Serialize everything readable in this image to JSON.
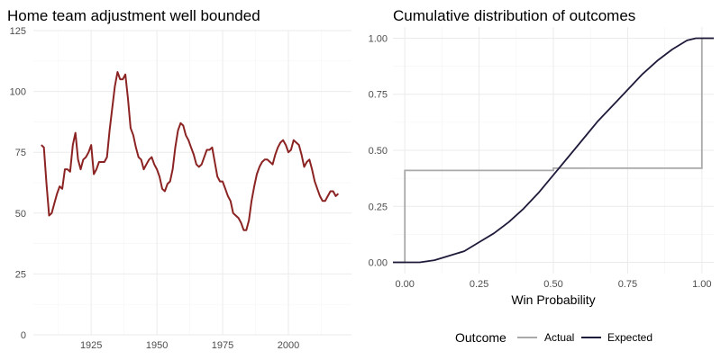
{
  "colors": {
    "home_line": "#8b2323",
    "actual": "#a9a9a9",
    "expected": "#1e1b3a",
    "grid_major": "#ebebeb",
    "grid_minor": "#f5f5f5",
    "tick_text": "#4d4d4d"
  },
  "chart_data": [
    {
      "type": "line",
      "title": "Home team adjustment well bounded",
      "xlabel": "",
      "ylabel": "",
      "xlim": [
        1903,
        2024
      ],
      "ylim": [
        0,
        125
      ],
      "x_ticks": [
        1925,
        1950,
        1975,
        2000
      ],
      "y_ticks": [
        0,
        25,
        50,
        75,
        100,
        125
      ],
      "grid": true,
      "x": [
        1906,
        1907,
        1908,
        1909,
        1910,
        1911,
        1912,
        1913,
        1914,
        1915,
        1916,
        1917,
        1918,
        1919,
        1920,
        1921,
        1922,
        1923,
        1924,
        1925,
        1926,
        1927,
        1928,
        1929,
        1930,
        1931,
        1932,
        1933,
        1934,
        1935,
        1936,
        1937,
        1938,
        1939,
        1940,
        1941,
        1942,
        1943,
        1944,
        1945,
        1946,
        1947,
        1948,
        1949,
        1950,
        1951,
        1952,
        1953,
        1954,
        1955,
        1956,
        1957,
        1958,
        1959,
        1960,
        1961,
        1962,
        1963,
        1964,
        1965,
        1966,
        1967,
        1968,
        1969,
        1970,
        1971,
        1972,
        1973,
        1974,
        1975,
        1976,
        1977,
        1978,
        1979,
        1980,
        1981,
        1982,
        1983,
        1984,
        1985,
        1986,
        1987,
        1988,
        1989,
        1990,
        1991,
        1992,
        1993,
        1994,
        1995,
        1996,
        1997,
        1998,
        1999,
        2000,
        2001,
        2002,
        2003,
        2004,
        2005,
        2006,
        2007,
        2008,
        2009,
        2010,
        2011,
        2012,
        2013,
        2014,
        2015,
        2016,
        2017,
        2018,
        2019
      ],
      "series": [
        {
          "values": [
            78,
            77,
            62,
            49,
            50,
            54,
            58,
            61,
            60,
            68,
            68,
            67,
            78,
            83,
            72,
            68,
            72,
            73,
            75,
            78,
            66,
            68,
            71,
            71,
            71,
            73,
            84,
            93,
            102,
            108,
            105,
            105,
            107,
            97,
            85,
            82,
            77,
            73,
            72,
            68,
            70,
            72,
            73,
            70,
            68,
            65,
            60,
            59,
            62,
            63,
            68,
            77,
            84,
            87,
            86,
            82,
            80,
            77,
            74,
            70,
            69,
            70,
            73,
            76,
            76,
            77,
            71,
            65,
            63,
            63,
            60,
            57,
            55,
            50,
            49,
            48,
            46,
            43,
            43,
            47,
            55,
            61,
            66,
            69,
            71,
            72,
            72,
            71,
            70,
            74,
            77,
            79,
            80,
            78,
            75,
            76,
            80,
            79,
            78,
            74,
            69,
            71,
            72,
            68,
            63,
            60,
            57,
            55,
            55,
            57,
            59,
            59,
            57,
            58
          ]
        }
      ]
    },
    {
      "type": "line",
      "title": "Cumulative distribution of outcomes",
      "xlabel": "Win Probability",
      "ylabel": "",
      "xlim": [
        -0.04,
        1.04
      ],
      "ylim": [
        -0.05,
        1.05
      ],
      "x_ticks": [
        0.0,
        0.25,
        0.5,
        0.75,
        1.0
      ],
      "x_tick_labels": [
        "0.00",
        "0.25",
        "0.50",
        "0.75",
        "1.00"
      ],
      "y_ticks": [
        0.0,
        0.25,
        0.5,
        0.75,
        1.0
      ],
      "y_tick_labels": [
        "0.00",
        "0.25",
        "0.50",
        "0.75",
        "1.00"
      ],
      "grid": true,
      "legend": {
        "title": "Outcome",
        "position": "bottom"
      },
      "series": [
        {
          "name": "Actual",
          "step": true,
          "x": [
            -0.04,
            0.0,
            0.0,
            0.5,
            0.5,
            1.0,
            1.0,
            1.04
          ],
          "y": [
            0.0,
            0.0,
            0.41,
            0.41,
            0.42,
            0.42,
            1.0,
            1.0
          ]
        },
        {
          "name": "Expected",
          "x": [
            -0.04,
            0.0,
            0.05,
            0.1,
            0.15,
            0.2,
            0.25,
            0.3,
            0.35,
            0.4,
            0.45,
            0.5,
            0.55,
            0.6,
            0.65,
            0.7,
            0.75,
            0.8,
            0.85,
            0.9,
            0.95,
            0.98,
            1.0,
            1.04
          ],
          "y": [
            0.0,
            0.0,
            0.0,
            0.01,
            0.03,
            0.05,
            0.09,
            0.13,
            0.18,
            0.24,
            0.31,
            0.39,
            0.47,
            0.55,
            0.63,
            0.7,
            0.77,
            0.84,
            0.9,
            0.95,
            0.99,
            1.0,
            1.0,
            1.0
          ]
        }
      ]
    }
  ]
}
